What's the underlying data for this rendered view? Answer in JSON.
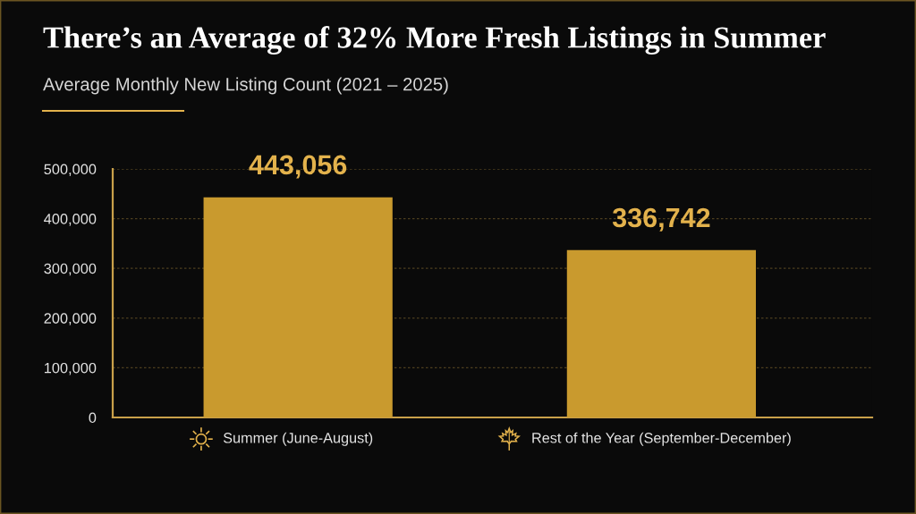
{
  "chart_data": {
    "type": "bar",
    "title": "There’s an Average of 32% More Fresh Listings in Summer",
    "subtitle": "Average Monthly New Listing Count (2021 – 2025)",
    "categories": [
      "Summer (June-August)",
      "Rest of the Year (September-December)"
    ],
    "values": [
      443056,
      336742
    ],
    "value_labels": [
      "443,056",
      "336,742"
    ],
    "color": "#c99a2e",
    "ylim": [
      0,
      500000
    ],
    "yticks": [
      0,
      {
        "value": 100000,
        "label": "100,000"
      },
      {
        "value": 200000,
        "label": "200,000"
      },
      {
        "value": 300000,
        "label": "300,000"
      },
      {
        "value": 400000,
        "label": "400,000"
      },
      {
        "value": 500000,
        "label": "500,000"
      }
    ],
    "grid": "y"
  }
}
